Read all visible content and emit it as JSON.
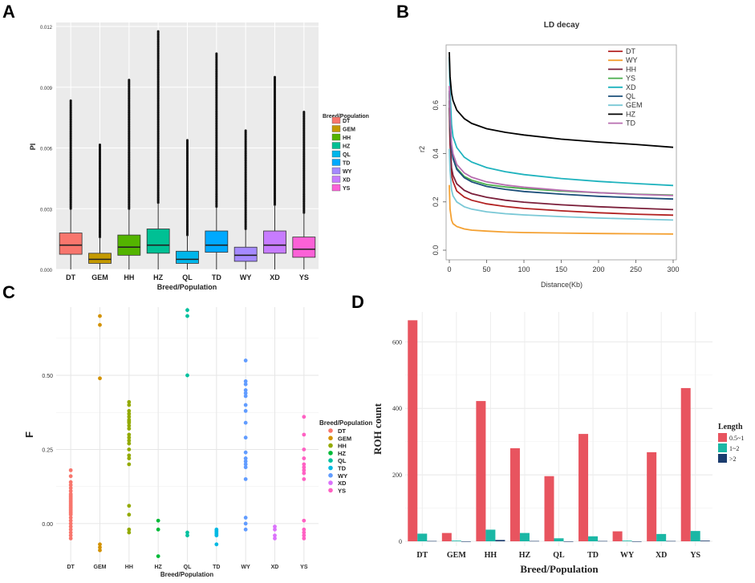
{
  "panels": {
    "a": "A",
    "b": "B",
    "c": "C",
    "d": "D"
  },
  "chart_data": [
    {
      "id": "A",
      "type": "box",
      "title": "",
      "xlabel": "Breed/Population",
      "ylabel": "PI",
      "ylim": [
        0,
        0.0122
      ],
      "yticks": [
        0,
        0.003,
        0.006,
        0.009,
        0.012
      ],
      "ytick_labels": [
        "0.000",
        "0.003",
        "0.006",
        "0.009",
        "0.012"
      ],
      "legend_title": "Breed/Population",
      "legend_order": [
        "DT",
        "GEM",
        "HH",
        "HZ",
        "QL",
        "TD",
        "WY",
        "XD",
        "YS"
      ],
      "categories": [
        "DT",
        "GEM",
        "HH",
        "HZ",
        "QL",
        "TD",
        "WY",
        "XD",
        "YS"
      ],
      "colors": [
        "#F8766D",
        "#C49A00",
        "#53B400",
        "#00C094",
        "#00B6EB",
        "#00A9FF",
        "#A58AFF",
        "#C77CFF",
        "#FB61D7"
      ],
      "boxes": [
        {
          "q1": 0.00075,
          "median": 0.0012,
          "q3": 0.0018,
          "whisker_high": 0.003,
          "outlier_max": 0.0084
        },
        {
          "q1": 0.0003,
          "median": 0.0005,
          "q3": 0.0008,
          "whisker_high": 0.0016,
          "outlier_max": 0.0062
        },
        {
          "q1": 0.0007,
          "median": 0.0011,
          "q3": 0.0017,
          "whisker_high": 0.003,
          "outlier_max": 0.0094
        },
        {
          "q1": 0.0008,
          "median": 0.0012,
          "q3": 0.002,
          "whisker_high": 0.0033,
          "outlier_max": 0.0118
        },
        {
          "q1": 0.0003,
          "median": 0.0005,
          "q3": 0.0009,
          "whisker_high": 0.0017,
          "outlier_max": 0.0064
        },
        {
          "q1": 0.00085,
          "median": 0.0012,
          "q3": 0.0019,
          "whisker_high": 0.0031,
          "outlier_max": 0.0107
        },
        {
          "q1": 0.0004,
          "median": 0.0007,
          "q3": 0.0011,
          "whisker_high": 0.002,
          "outlier_max": 0.0069
        },
        {
          "q1": 0.0008,
          "median": 0.0012,
          "q3": 0.0019,
          "whisker_high": 0.0032,
          "outlier_max": 0.0095
        },
        {
          "q1": 0.0006,
          "median": 0.001,
          "q3": 0.0016,
          "whisker_high": 0.0028,
          "outlier_max": 0.0078
        }
      ]
    },
    {
      "id": "B",
      "type": "line",
      "title": "LD decay",
      "xlabel": "Distance(Kb)",
      "ylabel": "r2",
      "xlim": [
        0,
        300
      ],
      "ylim": [
        0,
        0.85
      ],
      "xticks": [
        0,
        50,
        100,
        150,
        200,
        250,
        300
      ],
      "yticks": [
        0,
        0.2,
        0.4,
        0.6
      ],
      "ytick_labels": [
        "0.0",
        "0.2",
        "0.4",
        "0.6"
      ],
      "x": [
        0,
        1,
        3,
        5,
        10,
        20,
        30,
        50,
        75,
        100,
        150,
        200,
        250,
        300
      ],
      "series": [
        {
          "name": "DT",
          "color": "#B22222",
          "values": [
            0.59,
            0.44,
            0.31,
            0.285,
            0.245,
            0.22,
            0.207,
            0.192,
            0.181,
            0.173,
            0.163,
            0.155,
            0.149,
            0.145
          ]
        },
        {
          "name": "WY",
          "color": "#F4A132",
          "values": [
            0.27,
            0.17,
            0.125,
            0.11,
            0.098,
            0.088,
            0.083,
            0.079,
            0.075,
            0.073,
            0.071,
            0.069,
            0.068,
            0.067
          ]
        },
        {
          "name": "HH",
          "color": "#7B1F3A",
          "values": [
            0.62,
            0.46,
            0.34,
            0.31,
            0.275,
            0.248,
            0.234,
            0.219,
            0.207,
            0.199,
            0.188,
            0.18,
            0.174,
            0.168
          ]
        },
        {
          "name": "YS",
          "color": "#49AE4B",
          "values": [
            0.65,
            0.53,
            0.42,
            0.385,
            0.34,
            0.305,
            0.29,
            0.272,
            0.262,
            0.255,
            0.245,
            0.238,
            0.232,
            0.228
          ]
        },
        {
          "name": "XD",
          "color": "#1FB3BE",
          "values": [
            0.8,
            0.66,
            0.52,
            0.47,
            0.425,
            0.385,
            0.365,
            0.342,
            0.325,
            0.313,
            0.297,
            0.285,
            0.276,
            0.268
          ]
        },
        {
          "name": "QL",
          "color": "#1C4F7A",
          "values": [
            0.66,
            0.53,
            0.42,
            0.38,
            0.335,
            0.3,
            0.283,
            0.264,
            0.252,
            0.243,
            0.232,
            0.223,
            0.217,
            0.212
          ]
        },
        {
          "name": "GEM",
          "color": "#7AC8D6",
          "values": [
            0.42,
            0.33,
            0.25,
            0.225,
            0.2,
            0.18,
            0.17,
            0.159,
            0.151,
            0.146,
            0.139,
            0.133,
            0.129,
            0.125
          ]
        },
        {
          "name": "HZ",
          "color": "#000000",
          "values": [
            0.82,
            0.72,
            0.65,
            0.62,
            0.58,
            0.545,
            0.525,
            0.503,
            0.488,
            0.477,
            0.46,
            0.448,
            0.438,
            0.426
          ]
        },
        {
          "name": "TD",
          "color": "#B86EB0",
          "values": [
            0.68,
            0.56,
            0.44,
            0.4,
            0.355,
            0.32,
            0.302,
            0.283,
            0.27,
            0.261,
            0.248,
            0.238,
            0.231,
            0.226
          ]
        }
      ]
    },
    {
      "id": "C",
      "type": "scatter",
      "title": "",
      "xlabel": "Breed/Population",
      "ylabel": "F",
      "ylim": [
        -0.13,
        0.73
      ],
      "yticks": [
        0,
        0.25,
        0.5
      ],
      "ytick_labels": [
        "0.00",
        "0.25",
        "0.50"
      ],
      "legend_title": "Breed/Population",
      "legend_order": [
        "DT",
        "GEM",
        "HH",
        "HZ",
        "QL",
        "TD",
        "WY",
        "XD",
        "YS"
      ],
      "categories": [
        "DT",
        "GEM",
        "HH",
        "HZ",
        "QL",
        "TD",
        "WY",
        "XD",
        "YS"
      ],
      "colors": [
        "#F8766D",
        "#D39200",
        "#93AA00",
        "#00BA38",
        "#00C19F",
        "#00B9E3",
        "#619CFF",
        "#DB72FB",
        "#FF61C3"
      ],
      "points": [
        [
          0.18,
          0.16,
          0.14,
          0.13,
          0.12,
          0.11,
          0.1,
          0.095,
          0.09,
          0.085,
          0.08,
          0.075,
          0.07,
          0.065,
          0.06,
          0.055,
          0.05,
          0.045,
          0.04,
          0.035,
          0.03,
          0.02,
          0.01,
          0.0,
          -0.01,
          -0.02,
          -0.03,
          -0.04,
          -0.05
        ],
        [
          0.7,
          0.67,
          0.49,
          -0.07,
          -0.08,
          -0.09
        ],
        [
          0.41,
          0.4,
          0.38,
          0.37,
          0.36,
          0.35,
          0.345,
          0.34,
          0.33,
          0.32,
          0.3,
          0.29,
          0.28,
          0.27,
          0.25,
          0.23,
          0.22,
          0.2,
          0.06,
          0.03,
          -0.02,
          -0.03
        ],
        [
          0.01,
          -0.02,
          -0.11
        ],
        [
          0.72,
          0.7,
          0.5,
          -0.03,
          -0.04
        ],
        [
          -0.02,
          -0.025,
          -0.03,
          -0.035,
          -0.04,
          -0.07
        ],
        [
          0.55,
          0.48,
          0.47,
          0.45,
          0.44,
          0.43,
          0.4,
          0.38,
          0.34,
          0.29,
          0.24,
          0.22,
          0.21,
          0.2,
          0.19,
          0.15,
          0.02,
          0.0,
          -0.02
        ],
        [
          -0.01,
          -0.02,
          -0.04,
          -0.05
        ],
        [
          0.36,
          0.3,
          0.25,
          0.22,
          0.2,
          0.19,
          0.18,
          0.17,
          0.15,
          0.01,
          -0.02,
          -0.03,
          -0.04,
          -0.05
        ]
      ]
    },
    {
      "id": "D",
      "type": "bar",
      "title": "",
      "xlabel": "Breed/Population",
      "ylabel": "ROH count",
      "ylim": [
        0,
        690
      ],
      "yticks": [
        0,
        200,
        400,
        600
      ],
      "legend_title": "Length",
      "categories": [
        "DT",
        "GEM",
        "HH",
        "HZ",
        "QL",
        "TD",
        "WY",
        "XD",
        "YS"
      ],
      "series": [
        {
          "name": "0.5~1",
          "color": "#E8545F",
          "values": [
            665,
            25,
            422,
            280,
            196,
            323,
            30,
            268,
            461
          ]
        },
        {
          "name": "1~2",
          "color": "#1BB7A5",
          "values": [
            23,
            2,
            35,
            25,
            9,
            15,
            2,
            22,
            31
          ]
        },
        {
          "name": ">2",
          "color": "#1B3C6E",
          "values": [
            1,
            0,
            4,
            1,
            0,
            1,
            0,
            1,
            2
          ]
        }
      ]
    }
  ]
}
